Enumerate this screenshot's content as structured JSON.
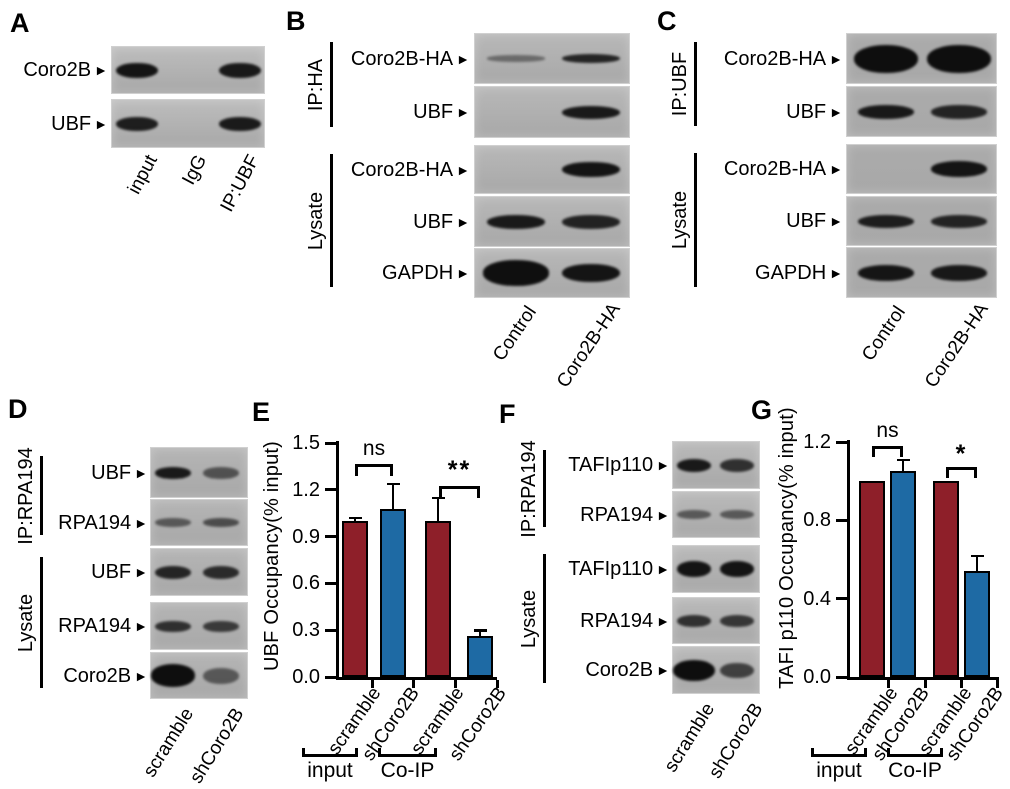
{
  "colors": {
    "bar_red": "#8E1F29",
    "bar_blue": "#1E6AA4",
    "axis": "#000000",
    "blot_bg_light": "#bdbdbd",
    "blot_bg_dark": "#ababab",
    "band": "#0e0e0e"
  },
  "icons": {
    "band_pointer": "►"
  },
  "panels": {
    "A": {
      "letter": "A",
      "rows": [
        "Coro2B",
        "UBF"
      ],
      "bands": [
        [
          0.95,
          0,
          0.9
        ],
        [
          0.85,
          0,
          0.88
        ]
      ],
      "lanes": [
        "input",
        "IgG",
        "IP:UBF"
      ]
    },
    "B": {
      "letter": "B",
      "groups": [
        {
          "label": "IP:HA",
          "rows": [
            "Coro2B-HA",
            "UBF"
          ]
        },
        {
          "label": "Lysate",
          "rows": [
            "Coro2B-HA",
            "UBF",
            "GAPDH"
          ]
        }
      ],
      "bands": [
        [
          0.18,
          0.8
        ],
        [
          0,
          0.9
        ],
        [
          0,
          0.95
        ],
        [
          0.9,
          0.82
        ],
        [
          0.98,
          0.95
        ]
      ],
      "lanes": [
        "Control",
        "Coro2B-HA"
      ]
    },
    "C": {
      "letter": "C",
      "groups": [
        {
          "label": "IP:UBF",
          "rows": [
            "Coro2B-HA",
            "UBF"
          ]
        },
        {
          "label": "Lysate",
          "rows": [
            "Coro2B-HA",
            "UBF",
            "GAPDH"
          ]
        }
      ],
      "bands": [
        [
          1,
          1
        ],
        [
          0.9,
          0.8
        ],
        [
          0,
          0.95
        ],
        [
          0.85,
          0.8
        ],
        [
          0.93,
          0.9
        ]
      ],
      "lanes": [
        "Control",
        "Coro2B-HA"
      ]
    },
    "D": {
      "letter": "D",
      "groups": [
        {
          "label": "IP:RPA194",
          "rows": [
            "UBF",
            "RPA194"
          ]
        },
        {
          "label": "Lysate",
          "rows": [
            "UBF",
            "RPA194",
            "Coro2B"
          ]
        }
      ],
      "bands": [
        [
          0.9,
          0.4
        ],
        [
          0.35,
          0.45
        ],
        [
          0.8,
          0.75
        ],
        [
          0.7,
          0.6
        ],
        [
          1,
          0.35
        ]
      ],
      "lanes": [
        "scramble",
        "shCoro2B"
      ]
    },
    "E": {
      "letter": "E"
    },
    "F": {
      "letter": "F",
      "groups": [
        {
          "label": "IP:RPA194",
          "rows": [
            "TAFIp110",
            "RPA194"
          ]
        },
        {
          "label": "Lysate",
          "rows": [
            "TAFIp110",
            "RPA194",
            "Coro2B"
          ]
        }
      ],
      "bands": [
        [
          0.9,
          0.7
        ],
        [
          0.35,
          0.35
        ],
        [
          0.95,
          0.95
        ],
        [
          0.7,
          0.65
        ],
        [
          1,
          0.55
        ]
      ],
      "lanes": [
        "scramble",
        "shCoro2B"
      ]
    },
    "G": {
      "letter": "G"
    }
  },
  "chart_data": [
    {
      "panel": "E",
      "type": "bar",
      "title": "",
      "xlabel": "",
      "ylabel": "UBF Occupancy(% input)",
      "ylim": [
        0,
        1.5
      ],
      "yticks": [
        "0.0",
        "0.3",
        "0.6",
        "0.9",
        "1.2",
        "1.5"
      ],
      "grid": false,
      "legend": false,
      "categories": [
        "scramble",
        "shCoro2B",
        "scramble",
        "shCoro2B"
      ],
      "values": [
        1.0,
        1.08,
        1.0,
        0.26
      ],
      "errors": [
        0.02,
        0.16,
        0.15,
        0.04
      ],
      "bar_colors": [
        "red",
        "blue",
        "red",
        "blue"
      ],
      "groups": [
        {
          "label": "input",
          "bars": [
            0,
            1
          ]
        },
        {
          "label": "Co-IP",
          "bars": [
            2,
            3
          ]
        }
      ],
      "significance": [
        {
          "bars": [
            0,
            1
          ],
          "label": "ns"
        },
        {
          "bars": [
            2,
            3
          ],
          "label": "**"
        }
      ]
    },
    {
      "panel": "G",
      "type": "bar",
      "title": "",
      "xlabel": "",
      "ylabel": "TAFI p110 Occupancy(% input)",
      "ylim": [
        0,
        1.2
      ],
      "yticks": [
        "0.0",
        "0.4",
        "0.8",
        "1.2"
      ],
      "grid": false,
      "legend": false,
      "categories": [
        "scramble",
        "shCoro2B",
        "scramble",
        "shCoro2B"
      ],
      "values": [
        1.0,
        1.05,
        1.0,
        0.54
      ],
      "errors": [
        0,
        0.06,
        0,
        0.08
      ],
      "bar_colors": [
        "red",
        "blue",
        "red",
        "blue"
      ],
      "groups": [
        {
          "label": "input",
          "bars": [
            0,
            1
          ]
        },
        {
          "label": "Co-IP",
          "bars": [
            2,
            3
          ]
        }
      ],
      "significance": [
        {
          "bars": [
            0,
            1
          ],
          "label": "ns"
        },
        {
          "bars": [
            2,
            3
          ],
          "label": "*"
        }
      ]
    }
  ]
}
